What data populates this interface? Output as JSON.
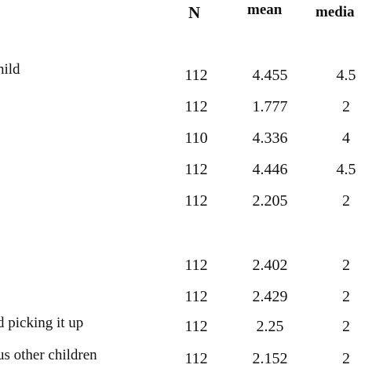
{
  "table": {
    "headers": {
      "n": "N",
      "mean": "mean",
      "median": "media"
    },
    "label_fragments": [
      "nild",
      "d picking it up",
      "us other children"
    ],
    "rows": [
      {
        "n": "112",
        "mean": "4.455",
        "median": "4.5"
      },
      {
        "n": "112",
        "mean": "1.777",
        "median": "2"
      },
      {
        "n": "110",
        "mean": "4.336",
        "median": "4"
      },
      {
        "n": "112",
        "mean": "4.446",
        "median": "4.5"
      },
      {
        "n": "112",
        "mean": "2.205",
        "median": "2"
      },
      {
        "n": "112",
        "mean": "2.402",
        "median": "2"
      },
      {
        "n": "112",
        "mean": "2.429",
        "median": "2"
      },
      {
        "n": "112",
        "mean": "2.25",
        "median": "2"
      },
      {
        "n": "112",
        "mean": "2.152",
        "median": "2"
      }
    ]
  }
}
